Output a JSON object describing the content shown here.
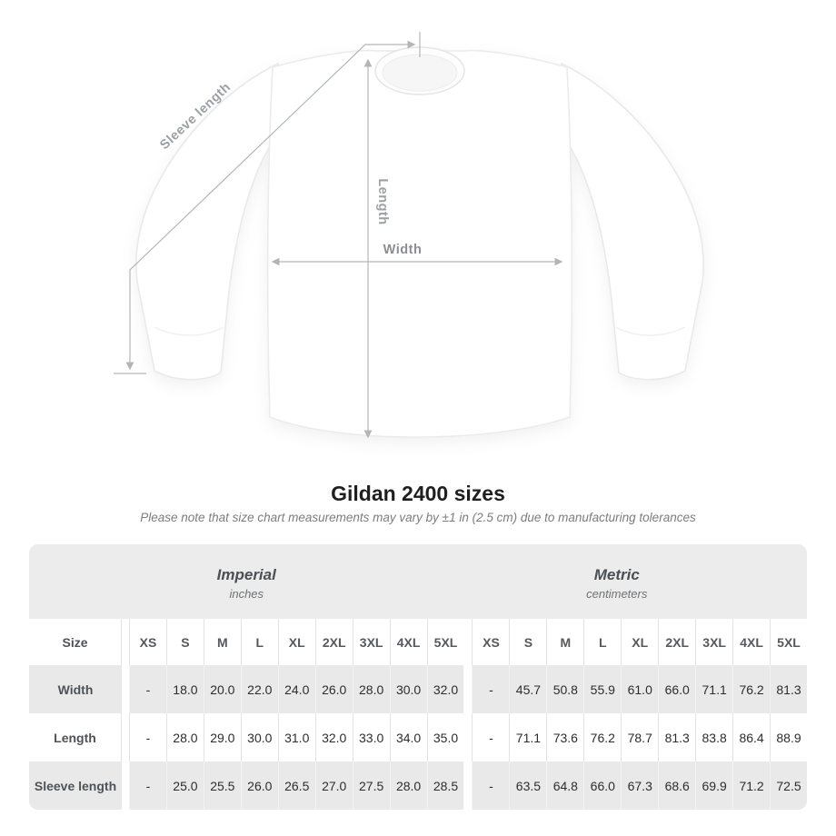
{
  "colors": {
    "table_bg": "#ececec",
    "alt_row_bg": "#e9e9e9",
    "dimension_line": "#b3b6b9",
    "diagram_label": "#9ba0a4",
    "title_text": "#1f1f1f",
    "note_text": "#7c7c7c"
  },
  "diagram": {
    "sleeve_label": "Sleeve length",
    "length_label": "Length",
    "width_label": "Width"
  },
  "heading": {
    "title": "Gildan 2400 sizes",
    "note": "Please note that size chart measurements may vary by ±1 in (2.5 cm) due to manufacturing tolerances"
  },
  "chart_data": {
    "type": "table",
    "title": "Gildan 2400 sizes",
    "size_label": "Size",
    "sizes": [
      "XS",
      "S",
      "M",
      "L",
      "XL",
      "2XL",
      "3XL",
      "4XL",
      "5XL"
    ],
    "sections": [
      {
        "name": "Imperial",
        "unit": "inches",
        "rows": [
          {
            "label": "Width",
            "values": [
              "-",
              "18.0",
              "20.0",
              "22.0",
              "24.0",
              "26.0",
              "28.0",
              "30.0",
              "32.0"
            ]
          },
          {
            "label": "Length",
            "values": [
              "-",
              "28.0",
              "29.0",
              "30.0",
              "31.0",
              "32.0",
              "33.0",
              "34.0",
              "35.0"
            ]
          },
          {
            "label": "Sleeve length",
            "values": [
              "-",
              "25.0",
              "25.5",
              "26.0",
              "26.5",
              "27.0",
              "27.5",
              "28.0",
              "28.5"
            ]
          }
        ]
      },
      {
        "name": "Metric",
        "unit": "centimeters",
        "rows": [
          {
            "label": "Width",
            "values": [
              "-",
              "45.7",
              "50.8",
              "55.9",
              "61.0",
              "66.0",
              "71.1",
              "76.2",
              "81.3"
            ]
          },
          {
            "label": "Length",
            "values": [
              "-",
              "71.1",
              "73.6",
              "76.2",
              "78.7",
              "81.3",
              "83.8",
              "86.4",
              "88.9"
            ]
          },
          {
            "label": "Sleeve length",
            "values": [
              "-",
              "63.5",
              "64.8",
              "66.0",
              "67.3",
              "68.6",
              "69.9",
              "71.2",
              "72.5"
            ]
          }
        ]
      }
    ]
  }
}
